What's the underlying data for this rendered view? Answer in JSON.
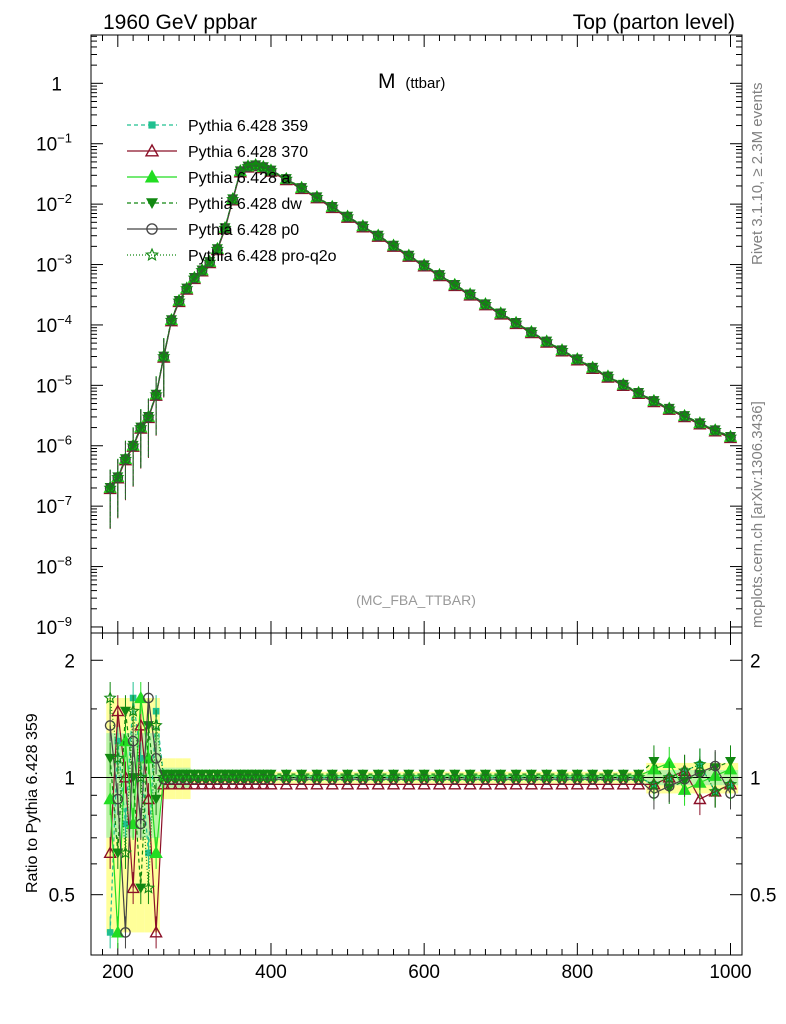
{
  "header": {
    "left": "1960 GeV ppbar",
    "right": "Top (parton level)"
  },
  "side_labels": {
    "top": "Rivet 3.1.10, ≥ 2.3M events",
    "bottom": "mcplots.cern.ch [arXiv:1306.3436]"
  },
  "chart_data": {
    "type": "line",
    "title_main": "M",
    "title_sub": "(ttbar)",
    "watermark": "(MC_FBA_TTBAR)",
    "xlabel": "",
    "ylabel": "",
    "ratio_ylabel": "Ratio to Pythia 6.428 359",
    "xlim": [
      165,
      1015
    ],
    "ylim_log": [
      -9.1,
      0.8
    ],
    "ratio_ylim": [
      0.35,
      2.35
    ],
    "x_ticks": [
      200,
      400,
      600,
      800,
      1000
    ],
    "x_tick_labels": [
      "200",
      "400",
      "600",
      "800",
      "1000"
    ],
    "y_ticks": [
      {
        "label": "1",
        "exp": 0
      },
      {
        "label": "10",
        "sup": "−1",
        "exp": -1
      },
      {
        "label": "10",
        "sup": "−2",
        "exp": -2
      },
      {
        "label": "10",
        "sup": "−3",
        "exp": -3
      },
      {
        "label": "10",
        "sup": "−4",
        "exp": -4
      },
      {
        "label": "10",
        "sup": "−5",
        "exp": -5
      },
      {
        "label": "10",
        "sup": "−6",
        "exp": -6
      },
      {
        "label": "10",
        "sup": "−7",
        "exp": -7
      },
      {
        "label": "10",
        "sup": "−8",
        "exp": -8
      },
      {
        "label": "10",
        "sup": "−9",
        "exp": -9
      }
    ],
    "ratio_ticks": [
      {
        "label": "2",
        "value": 2
      },
      {
        "label": "1",
        "value": 1
      },
      {
        "label": "0.5",
        "value": 0.5
      }
    ],
    "legend_position": "top-left",
    "series": [
      {
        "name": "Pythia 6.428 359",
        "color": "#20c090",
        "marker": "square",
        "dash": "4,3",
        "ratio_scale": 0.0
      },
      {
        "name": "Pythia 6.428 370",
        "color": "#8b1028",
        "marker": "open-triangle",
        "dash": "",
        "ratio_scale": -0.04
      },
      {
        "name": "Pythia 6.428 a",
        "color": "#22dd22",
        "marker": "triangle",
        "dash": "",
        "ratio_scale": 0.01
      },
      {
        "name": "Pythia 6.428 dw",
        "color": "#118811",
        "marker": "triangle-down",
        "dash": "4,3",
        "ratio_scale": 0.02
      },
      {
        "name": "Pythia 6.428 p0",
        "color": "#444444",
        "marker": "open-circle",
        "dash": "",
        "ratio_scale": -0.01
      },
      {
        "name": "Pythia 6.428 pro-q2o",
        "color": "#118811",
        "marker": "open-star",
        "dash": "1,2",
        "ratio_scale": 0.0
      }
    ],
    "reference_x": [
      190,
      200,
      210,
      220,
      230,
      240,
      250,
      260,
      270,
      280,
      290,
      300,
      310,
      320,
      330,
      340,
      350,
      360,
      370,
      380,
      390,
      400,
      420,
      440,
      460,
      480,
      500,
      520,
      540,
      560,
      580,
      600,
      620,
      640,
      660,
      680,
      700,
      720,
      740,
      760,
      780,
      800,
      820,
      840,
      860,
      880,
      900,
      920,
      940,
      960,
      980,
      1000
    ],
    "reference_y": [
      2e-07,
      3e-07,
      6e-07,
      1e-06,
      2e-06,
      3e-06,
      7e-06,
      3e-05,
      0.00012,
      0.00025,
      0.0004,
      0.0006,
      0.0008,
      0.0011,
      0.0018,
      0.004,
      0.012,
      0.035,
      0.042,
      0.044,
      0.041,
      0.036,
      0.026,
      0.0185,
      0.013,
      0.009,
      0.0062,
      0.0043,
      0.003,
      0.00205,
      0.0014,
      0.00097,
      0.00067,
      0.00046,
      0.00032,
      0.00022,
      0.000155,
      0.000108,
      7.6e-05,
      5.3e-05,
      3.8e-05,
      2.7e-05,
      1.95e-05,
      1.4e-05,
      1.02e-05,
      7.5e-06,
      5.5e-06,
      4.1e-06,
      3.1e-06,
      2.35e-06,
      1.8e-06,
      1.4e-06
    ]
  }
}
